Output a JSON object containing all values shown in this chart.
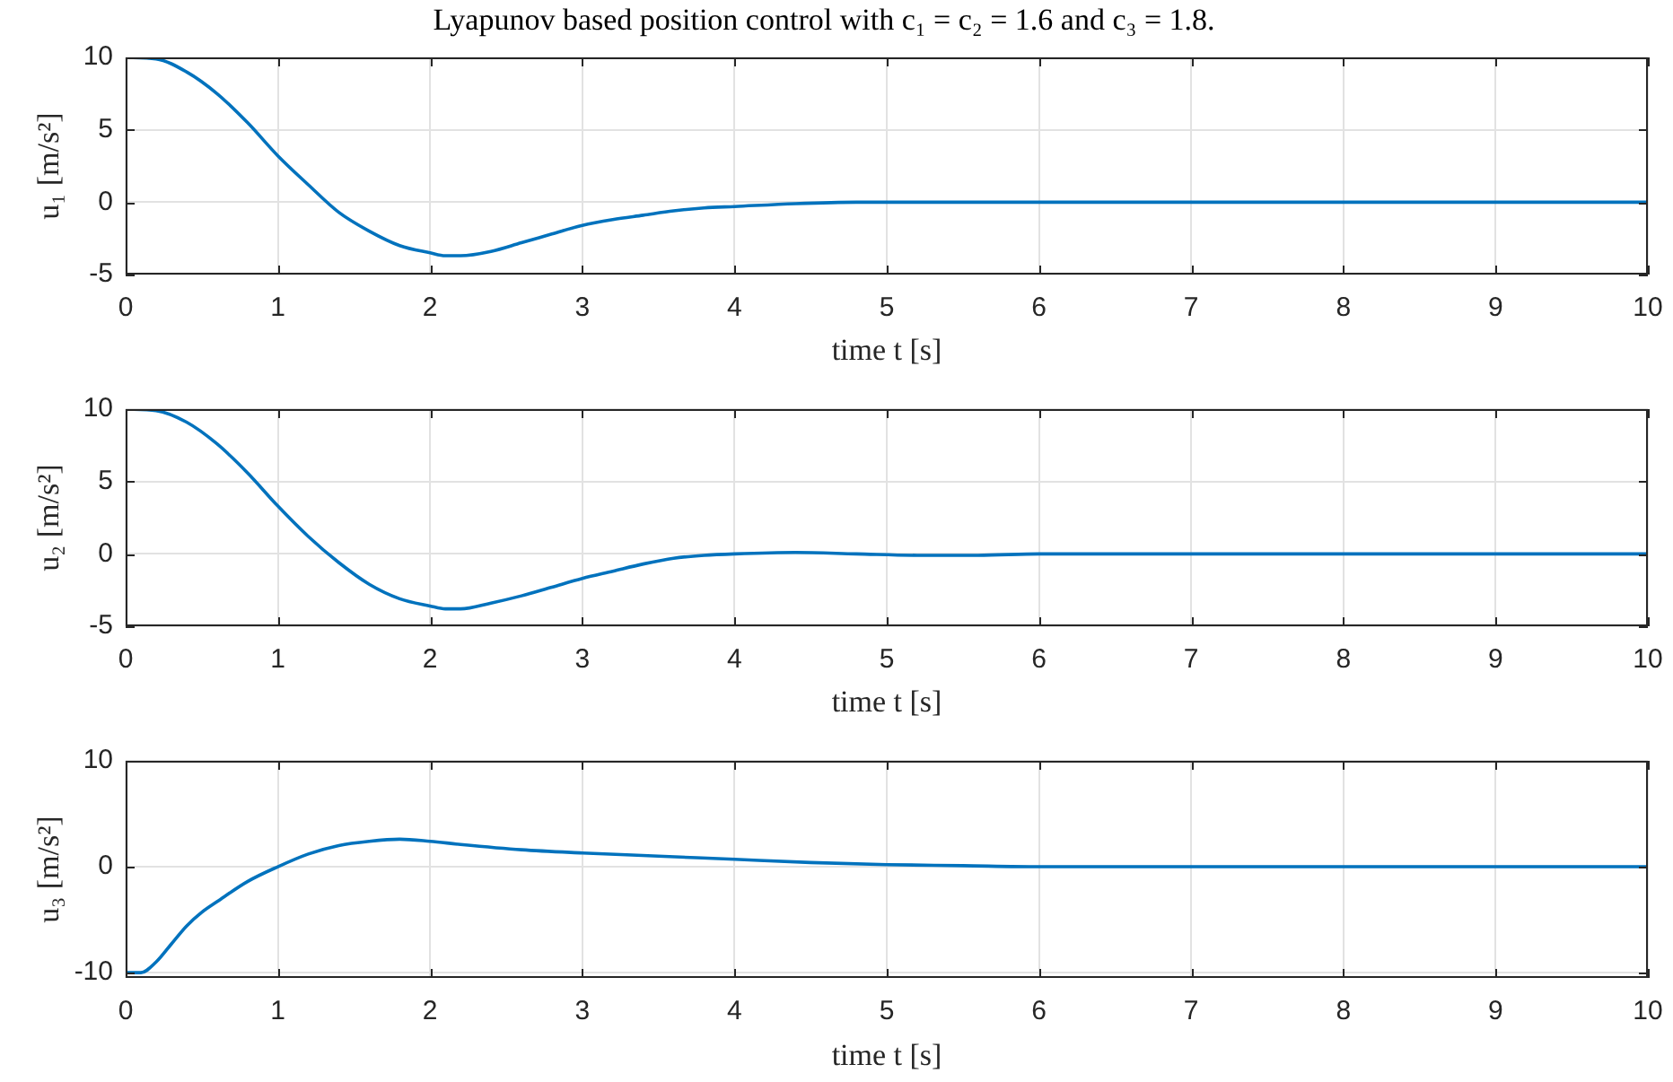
{
  "chart_data": [
    {
      "type": "line",
      "title": "Lyapunov based position control with c₁ = c₂ = 1.6 and c₃ = 1.8.",
      "xlabel": "time t [s]",
      "ylabel": "u₁ [m/s²]",
      "color": "#0072bd",
      "grid": true,
      "xlim": [
        0,
        10
      ],
      "xticks": [
        0,
        1,
        2,
        3,
        4,
        5,
        6,
        7,
        8,
        9,
        10
      ],
      "ylim": [
        -5,
        10
      ],
      "yticks": [
        -5,
        0,
        5,
        10
      ],
      "x": [
        0,
        0.2,
        0.4,
        0.6,
        0.8,
        1.0,
        1.2,
        1.4,
        1.6,
        1.8,
        2.0,
        2.1,
        2.2,
        2.4,
        2.6,
        2.8,
        3.0,
        3.2,
        3.4,
        3.6,
        3.8,
        4.0,
        4.4,
        4.8,
        5.2,
        6,
        7,
        8,
        9,
        10
      ],
      "values": [
        10,
        9.9,
        9.0,
        7.5,
        5.5,
        3.2,
        1.2,
        -0.7,
        -2.0,
        -3.0,
        -3.5,
        -3.7,
        -3.7,
        -3.4,
        -2.8,
        -2.2,
        -1.6,
        -1.2,
        -0.9,
        -0.6,
        -0.4,
        -0.3,
        -0.1,
        0,
        0,
        0,
        0,
        0,
        0,
        0
      ]
    },
    {
      "type": "line",
      "xlabel": "time t [s]",
      "ylabel": "u₂ [m/s²]",
      "color": "#0072bd",
      "grid": true,
      "xlim": [
        0,
        10
      ],
      "xticks": [
        0,
        1,
        2,
        3,
        4,
        5,
        6,
        7,
        8,
        9,
        10
      ],
      "ylim": [
        -5,
        10
      ],
      "yticks": [
        -5,
        0,
        5,
        10
      ],
      "x": [
        0,
        0.2,
        0.4,
        0.6,
        0.8,
        1.0,
        1.2,
        1.4,
        1.6,
        1.8,
        2.0,
        2.1,
        2.2,
        2.4,
        2.6,
        2.8,
        3.0,
        3.2,
        3.4,
        3.6,
        3.8,
        4.0,
        4.4,
        4.8,
        5.2,
        5.6,
        6,
        7,
        8,
        9,
        10
      ],
      "values": [
        10,
        9.9,
        9.1,
        7.6,
        5.6,
        3.3,
        1.2,
        -0.6,
        -2.1,
        -3.1,
        -3.6,
        -3.8,
        -3.8,
        -3.4,
        -2.9,
        -2.3,
        -1.7,
        -1.2,
        -0.7,
        -0.3,
        -0.1,
        0,
        0.1,
        0,
        -0.1,
        -0.1,
        0,
        0,
        0,
        0,
        0
      ]
    },
    {
      "type": "line",
      "xlabel": "time t [s]",
      "ylabel": "u₃ [m/s²]",
      "color": "#0072bd",
      "grid": true,
      "xlim": [
        0,
        10
      ],
      "xticks": [
        0,
        1,
        2,
        3,
        4,
        5,
        6,
        7,
        8,
        9,
        10
      ],
      "ylim": [
        -10.5,
        10
      ],
      "yticks": [
        -10,
        0,
        10
      ],
      "x": [
        0,
        0.1,
        0.2,
        0.3,
        0.4,
        0.5,
        0.6,
        0.8,
        1.0,
        1.2,
        1.4,
        1.6,
        1.8,
        2.0,
        2.2,
        2.6,
        3.0,
        3.5,
        4.0,
        4.5,
        5.0,
        5.5,
        6,
        7,
        8,
        9,
        10
      ],
      "values": [
        -10,
        -10,
        -9.0,
        -7.3,
        -5.6,
        -4.3,
        -3.3,
        -1.4,
        0,
        1.2,
        2.0,
        2.4,
        2.6,
        2.4,
        2.1,
        1.6,
        1.3,
        1.0,
        0.7,
        0.4,
        0.2,
        0.1,
        0,
        0,
        0,
        0,
        0
      ]
    }
  ]
}
